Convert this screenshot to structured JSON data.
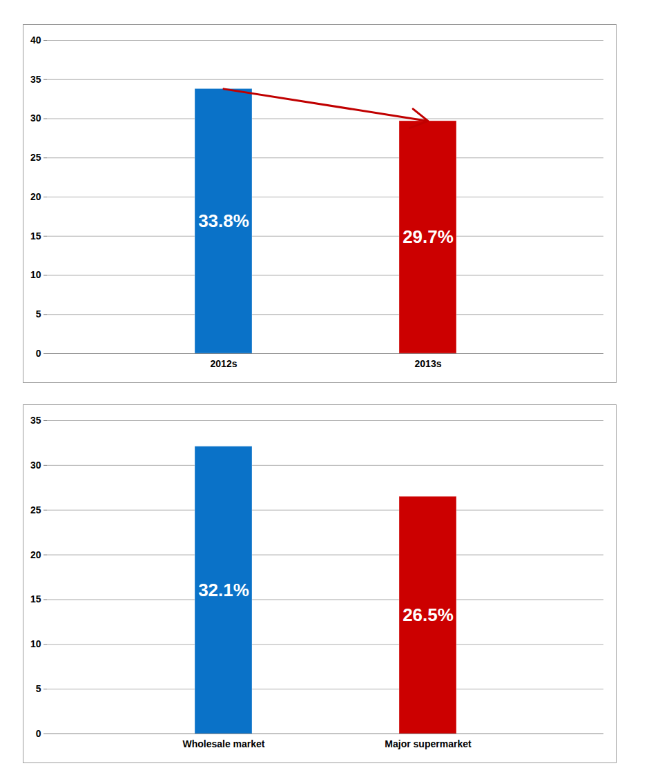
{
  "chart_data": [
    {
      "type": "bar",
      "categories": [
        "2012s",
        "2013s"
      ],
      "values": [
        33.8,
        29.7
      ],
      "value_labels": [
        "33.8%",
        "29.7%"
      ],
      "colors": [
        "#0a72c8",
        "#cc0000"
      ],
      "ylim": [
        0,
        40
      ],
      "yticks": [
        0,
        5,
        10,
        15,
        20,
        25,
        30,
        35,
        40
      ],
      "grid": true,
      "data_labels": true
    },
    {
      "type": "bar",
      "categories": [
        "Wholesale market",
        "Major supermarket"
      ],
      "values": [
        32.1,
        26.5
      ],
      "value_labels": [
        "32.1%",
        "26.5%"
      ],
      "colors": [
        "#0a72c8",
        "#cc0000"
      ],
      "ylim": [
        0,
        35
      ],
      "yticks": [
        0,
        5,
        10,
        15,
        20,
        25,
        30,
        35
      ],
      "grid": true,
      "data_labels": true
    }
  ]
}
